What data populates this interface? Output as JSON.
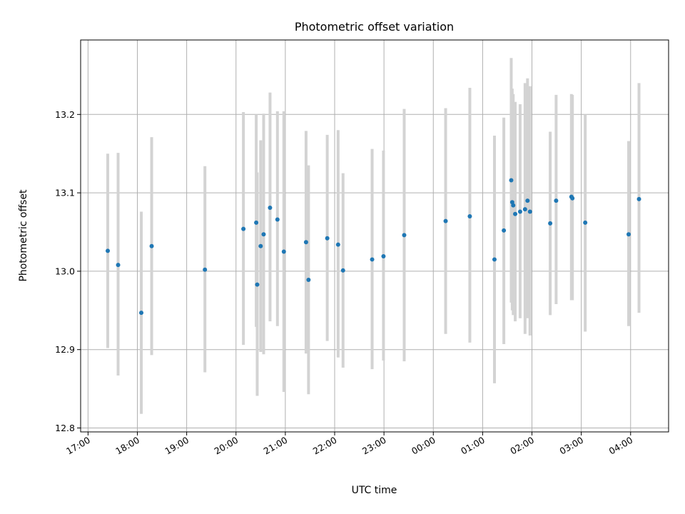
{
  "chart_data": {
    "type": "scatter",
    "title": "Photometric offset variation",
    "xlabel": "UTC time",
    "ylabel": "Photometric offset",
    "x_axis_kind": "time (hours, day rollover after 23:00)",
    "x_ticks": [
      {
        "label": "17:00",
        "hours": 17
      },
      {
        "label": "18:00",
        "hours": 18
      },
      {
        "label": "19:00",
        "hours": 19
      },
      {
        "label": "20:00",
        "hours": 20
      },
      {
        "label": "21:00",
        "hours": 21
      },
      {
        "label": "22:00",
        "hours": 22
      },
      {
        "label": "23:00",
        "hours": 23
      },
      {
        "label": "00:00",
        "hours": 24
      },
      {
        "label": "01:00",
        "hours": 25
      },
      {
        "label": "02:00",
        "hours": 26
      },
      {
        "label": "03:00",
        "hours": 27
      },
      {
        "label": "04:00",
        "hours": 28
      }
    ],
    "xlim": [
      16.85,
      28.77
    ],
    "ylim": [
      12.795,
      13.295
    ],
    "y_ticks": [
      12.8,
      12.9,
      13.0,
      13.1,
      13.2
    ],
    "y_tick_labels": [
      "12.8",
      "12.9",
      "13.0",
      "13.1",
      "13.2"
    ],
    "grid": true,
    "point_color": "#1f77b4",
    "errorbar_color": "#d3d3d3",
    "points": [
      {
        "time": "17:24",
        "x": 17.4,
        "y": 13.026,
        "ylow": 12.902,
        "yhigh": 13.15
      },
      {
        "time": "17:37",
        "x": 17.61,
        "y": 13.008,
        "ylow": 12.867,
        "yhigh": 13.151
      },
      {
        "time": "18:05",
        "x": 18.08,
        "y": 12.947,
        "ylow": 12.818,
        "yhigh": 13.076
      },
      {
        "time": "18:17",
        "x": 18.29,
        "y": 13.032,
        "ylow": 12.893,
        "yhigh": 13.171
      },
      {
        "time": "19:22",
        "x": 19.37,
        "y": 13.002,
        "ylow": 12.871,
        "yhigh": 13.134
      },
      {
        "time": "20:09",
        "x": 20.15,
        "y": 13.054,
        "ylow": 12.906,
        "yhigh": 13.203
      },
      {
        "time": "20:24",
        "x": 20.41,
        "y": 13.062,
        "ylow": 12.929,
        "yhigh": 13.2
      },
      {
        "time": "20:26",
        "x": 20.43,
        "y": 12.983,
        "ylow": 12.841,
        "yhigh": 13.126
      },
      {
        "time": "20:30",
        "x": 20.5,
        "y": 13.032,
        "ylow": 12.897,
        "yhigh": 13.167
      },
      {
        "time": "20:33",
        "x": 20.56,
        "y": 13.047,
        "ylow": 12.894,
        "yhigh": 13.201
      },
      {
        "time": "20:41",
        "x": 20.69,
        "y": 13.081,
        "ylow": 12.936,
        "yhigh": 13.228
      },
      {
        "time": "20:50",
        "x": 20.84,
        "y": 13.066,
        "ylow": 12.93,
        "yhigh": 13.204
      },
      {
        "time": "20:58",
        "x": 20.97,
        "y": 13.025,
        "ylow": 12.846,
        "yhigh": 13.204
      },
      {
        "time": "21:25",
        "x": 21.42,
        "y": 13.037,
        "ylow": 12.895,
        "yhigh": 13.179
      },
      {
        "time": "21:28",
        "x": 21.47,
        "y": 12.989,
        "ylow": 12.843,
        "yhigh": 13.135
      },
      {
        "time": "21:51",
        "x": 21.85,
        "y": 13.042,
        "ylow": 12.911,
        "yhigh": 13.174
      },
      {
        "time": "22:04",
        "x": 22.07,
        "y": 13.034,
        "ylow": 12.89,
        "yhigh": 13.18
      },
      {
        "time": "22:10",
        "x": 22.17,
        "y": 13.001,
        "ylow": 12.877,
        "yhigh": 13.125
      },
      {
        "time": "22:45",
        "x": 22.76,
        "y": 13.015,
        "ylow": 12.875,
        "yhigh": 13.156
      },
      {
        "time": "22:59",
        "x": 22.99,
        "y": 13.019,
        "ylow": 12.886,
        "yhigh": 13.154
      },
      {
        "time": "23:25",
        "x": 23.41,
        "y": 13.046,
        "ylow": 12.885,
        "yhigh": 13.207
      },
      {
        "time": "00:15",
        "x": 24.25,
        "y": 13.064,
        "ylow": 12.92,
        "yhigh": 13.208
      },
      {
        "time": "00:44",
        "x": 24.74,
        "y": 13.07,
        "ylow": 12.909,
        "yhigh": 13.234
      },
      {
        "time": "01:14",
        "x": 25.24,
        "y": 13.015,
        "ylow": 12.857,
        "yhigh": 13.173
      },
      {
        "time": "01:26",
        "x": 25.43,
        "y": 13.052,
        "ylow": 12.907,
        "yhigh": 13.196
      },
      {
        "time": "01:35",
        "x": 25.58,
        "y": 13.116,
        "ylow": 12.96,
        "yhigh": 13.272
      },
      {
        "time": "01:36",
        "x": 25.6,
        "y": 13.088,
        "ylow": 12.95,
        "yhigh": 13.233
      },
      {
        "time": "01:37",
        "x": 25.62,
        "y": 13.084,
        "ylow": 12.944,
        "yhigh": 13.226
      },
      {
        "time": "01:39",
        "x": 25.66,
        "y": 13.073,
        "ylow": 12.936,
        "yhigh": 13.216
      },
      {
        "time": "01:45",
        "x": 25.76,
        "y": 13.076,
        "ylow": 12.94,
        "yhigh": 13.213
      },
      {
        "time": "01:51",
        "x": 25.86,
        "y": 13.079,
        "ylow": 12.92,
        "yhigh": 13.24
      },
      {
        "time": "01:55",
        "x": 25.91,
        "y": 13.09,
        "ylow": 12.94,
        "yhigh": 13.246
      },
      {
        "time": "01:57",
        "x": 25.96,
        "y": 13.076,
        "ylow": 12.918,
        "yhigh": 13.236
      },
      {
        "time": "02:22",
        "x": 26.37,
        "y": 13.061,
        "ylow": 12.944,
        "yhigh": 13.178
      },
      {
        "time": "02:29",
        "x": 26.49,
        "y": 13.09,
        "ylow": 12.958,
        "yhigh": 13.225
      },
      {
        "time": "02:48",
        "x": 26.8,
        "y": 13.095,
        "ylow": 12.963,
        "yhigh": 13.226
      },
      {
        "time": "02:49",
        "x": 26.82,
        "y": 13.093,
        "ylow": 12.963,
        "yhigh": 13.225
      },
      {
        "time": "03:05",
        "x": 27.08,
        "y": 13.062,
        "ylow": 12.923,
        "yhigh": 13.2
      },
      {
        "time": "03:57",
        "x": 27.96,
        "y": 13.047,
        "ylow": 12.93,
        "yhigh": 13.166
      },
      {
        "time": "04:10",
        "x": 28.17,
        "y": 13.092,
        "ylow": 12.947,
        "yhigh": 13.24
      }
    ]
  }
}
